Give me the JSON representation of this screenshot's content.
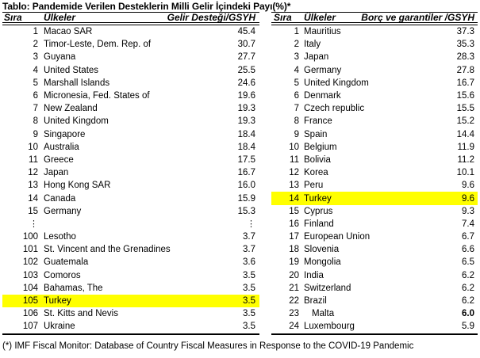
{
  "title": "Tablo: Pandemide Verilen Desteklerin Milli Gelir İçindeki Payı(%)*",
  "footnote": "(*) IMF Fiscal Monitor: Database of Country Fiscal Measures in Response to the COVID-19 Pandemic",
  "colors": {
    "highlight": "#ffff00",
    "text": "#000000",
    "background": "#ffffff"
  },
  "left_table": {
    "headers": {
      "rank": "Sıra",
      "country": "Ülkeler",
      "value": "Gelir Desteği/GSYH"
    },
    "rows": [
      {
        "rank": "1",
        "country": "Macao SAR",
        "value": "45.4"
      },
      {
        "rank": "2",
        "country": "Timor-Leste, Dem. Rep. of",
        "value": "30.7"
      },
      {
        "rank": "3",
        "country": "Guyana",
        "value": "27.7"
      },
      {
        "rank": "4",
        "country": "United States",
        "value": "25.5"
      },
      {
        "rank": "5",
        "country": "Marshall Islands",
        "value": "24.6"
      },
      {
        "rank": "6",
        "country": "Micronesia, Fed. States of",
        "value": "19.6"
      },
      {
        "rank": "7",
        "country": "New Zealand",
        "value": "19.3"
      },
      {
        "rank": "8",
        "country": "United Kingdom",
        "value": "19.3"
      },
      {
        "rank": "9",
        "country": "Singapore",
        "value": "18.4"
      },
      {
        "rank": "10",
        "country": "Australia",
        "value": "18.4"
      },
      {
        "rank": "11",
        "country": "Greece",
        "value": "17.5"
      },
      {
        "rank": "12",
        "country": "Japan",
        "value": "16.7"
      },
      {
        "rank": "13",
        "country": "Hong Kong SAR",
        "value": "16.0"
      },
      {
        "rank": "14",
        "country": "Canada",
        "value": "15.9"
      },
      {
        "rank": "15",
        "country": "Germany",
        "value": "15.3"
      },
      {
        "rank": "⋮",
        "country": "",
        "value": "⋮",
        "ellipsis": true
      },
      {
        "rank": "100",
        "country": "Lesotho",
        "value": "3.7"
      },
      {
        "rank": "101",
        "country": "St. Vincent and the Grenadines",
        "value": "3.7"
      },
      {
        "rank": "102",
        "country": "Guatemala",
        "value": "3.6"
      },
      {
        "rank": "103",
        "country": "Comoros",
        "value": "3.5"
      },
      {
        "rank": "104",
        "country": "Bahamas, The",
        "value": "3.5"
      },
      {
        "rank": "105",
        "country": "Turkey",
        "value": "3.5",
        "highlight": true
      },
      {
        "rank": "106",
        "country": "St. Kitts and Nevis",
        "value": "3.5"
      },
      {
        "rank": "107",
        "country": "Ukraine",
        "value": "3.5"
      }
    ]
  },
  "right_table": {
    "headers": {
      "rank": "Sıra",
      "country": "Ülkeler",
      "value": "Borç ve garantiler /GSYH"
    },
    "rows": [
      {
        "rank": "1",
        "country": "Mauritius",
        "value": "37.3"
      },
      {
        "rank": "2",
        "country": "Italy",
        "value": "35.3"
      },
      {
        "rank": "3",
        "country": "Japan",
        "value": "28.3"
      },
      {
        "rank": "4",
        "country": "Germany",
        "value": "27.8"
      },
      {
        "rank": "5",
        "country": "United Kingdom",
        "value": "16.7"
      },
      {
        "rank": "6",
        "country": "Denmark",
        "value": "15.6"
      },
      {
        "rank": "7",
        "country": "Czech republic",
        "value": "15.5"
      },
      {
        "rank": "8",
        "country": "France",
        "value": "15.2"
      },
      {
        "rank": "9",
        "country": "Spain",
        "value": "14.4"
      },
      {
        "rank": "10",
        "country": "Belgium",
        "value": "11.9"
      },
      {
        "rank": "11",
        "country": "Bolivia",
        "value": "11.2"
      },
      {
        "rank": "12",
        "country": "Korea",
        "value": "10.1"
      },
      {
        "rank": "13",
        "country": "Peru",
        "value": "9.6"
      },
      {
        "rank": "14",
        "country": "Turkey",
        "value": "9.6",
        "highlight": true
      },
      {
        "rank": "15",
        "country": "Cyprus",
        "value": "9.3"
      },
      {
        "rank": "16",
        "country": "Finland",
        "value": "7.4"
      },
      {
        "rank": "17",
        "country": "European Union",
        "value": "6.7"
      },
      {
        "rank": "18",
        "country": "Slovenia",
        "value": "6.6"
      },
      {
        "rank": "19",
        "country": "Mongolia",
        "value": "6.5"
      },
      {
        "rank": "20",
        "country": "India",
        "value": "6.2"
      },
      {
        "rank": "21",
        "country": "Switzerland",
        "value": "6.2"
      },
      {
        "rank": "22",
        "country": "Brazil",
        "value": "6.2"
      },
      {
        "rank": "23",
        "country": "Malta",
        "value": "6.0",
        "indent": true,
        "bold_value": true
      },
      {
        "rank": "24",
        "country": "Luxembourg",
        "value": "5.9"
      }
    ]
  }
}
